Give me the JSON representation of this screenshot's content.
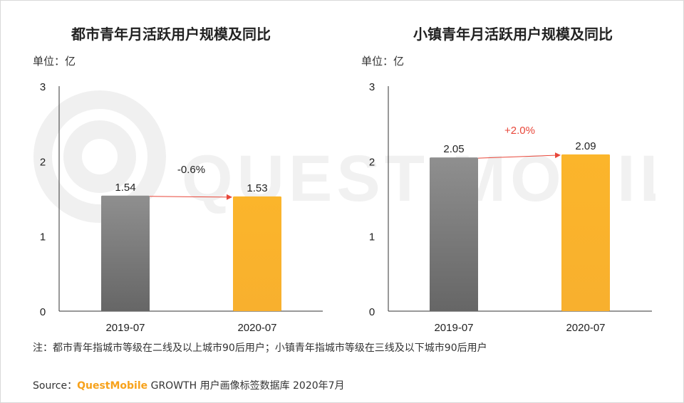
{
  "watermark": {
    "text": "QUEST MOBILE"
  },
  "chart_data": [
    {
      "type": "bar",
      "title": "都市青年月活跃用户规模及同比",
      "unit_label": "单位：亿",
      "categories": [
        "2019-07",
        "2020-07"
      ],
      "values": [
        1.54,
        1.53
      ],
      "value_labels": [
        "1.54",
        "1.53"
      ],
      "bar_colors": [
        "#7a7a7a",
        "#f8b12c"
      ],
      "ylim": [
        0,
        3
      ],
      "yticks": [
        "0",
        "1",
        "2",
        "3"
      ],
      "growth_label": "-0.6%",
      "growth_color": "#222222",
      "arrow_color": "#e8473a",
      "grid": false,
      "xlabel": "",
      "ylabel": ""
    },
    {
      "type": "bar",
      "title": "小镇青年月活跃用户规模及同比",
      "unit_label": "单位：亿",
      "categories": [
        "2019-07",
        "2020-07"
      ],
      "values": [
        2.05,
        2.09
      ],
      "value_labels": [
        "2.05",
        "2.09"
      ],
      "bar_colors": [
        "#7a7a7a",
        "#f8b12c"
      ],
      "ylim": [
        0,
        3
      ],
      "yticks": [
        "0",
        "1",
        "2",
        "3"
      ],
      "growth_label": "+2.0%",
      "growth_color": "#e8473a",
      "arrow_color": "#e8473a",
      "grid": false,
      "xlabel": "",
      "ylabel": ""
    }
  ],
  "footer": {
    "note": "注：都市青年指城市等级在二线及以上城市90后用户；小镇青年指城市等级在三线及以下城市90后用户",
    "source_prefix": "Source：",
    "source_brand": "QuestMobile",
    "source_rest": " GROWTH 用户画像标签数据库 2020年7月"
  }
}
